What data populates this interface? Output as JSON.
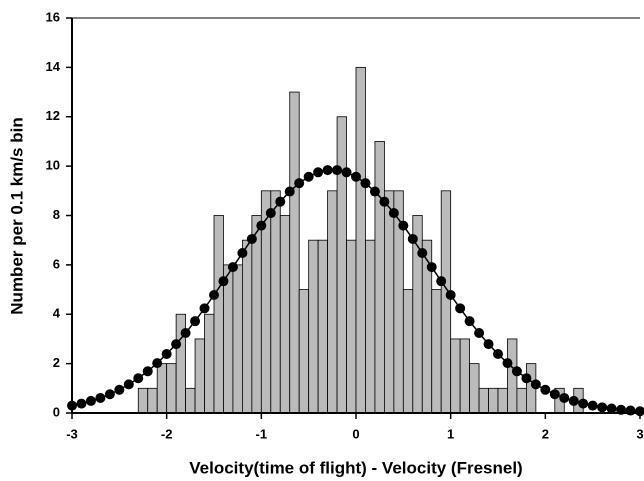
{
  "chart_data": {
    "type": "histogram",
    "xlabel": "Velocity(time of flight) - Velocity (Fresnel)",
    "ylabel": "Number per 0.1 km/s bin",
    "bins": [
      -2.3,
      -2.2,
      -2.1,
      -2.0,
      -1.9,
      -1.8,
      -1.7,
      -1.6,
      -1.5,
      -1.4,
      -1.3,
      -1.2,
      -1.1,
      -1.0,
      -0.9,
      -0.8,
      -0.7,
      -0.6,
      -0.5,
      -0.4,
      -0.3,
      -0.2,
      -0.1,
      0.0,
      0.1,
      0.2,
      0.3,
      0.4,
      0.5,
      0.6,
      0.7,
      0.8,
      0.9,
      1.0,
      1.1,
      1.2,
      1.3,
      1.4,
      1.5,
      1.6,
      1.7,
      1.8,
      1.9,
      2.0,
      2.1,
      2.2,
      2.3,
      2.4
    ],
    "values": [
      1,
      1,
      2,
      2,
      4,
      1,
      3,
      4,
      8,
      6,
      6,
      7,
      8,
      9,
      9,
      8,
      13,
      5,
      7,
      7,
      9,
      12,
      7,
      14,
      7,
      11,
      9,
      9,
      5,
      8,
      7,
      5,
      9,
      3,
      3,
      2,
      1,
      1,
      1,
      3,
      1,
      2,
      0,
      0,
      1,
      0,
      1
    ],
    "color": "#bbbbbb",
    "fit": {
      "type": "line",
      "color": "#000000",
      "marker": "circle",
      "x": [
        -3.0,
        -2.9,
        -2.8,
        -2.7,
        -2.6,
        -2.5,
        -2.4,
        -2.3,
        -2.2,
        -2.1,
        -2.0,
        -1.9,
        -1.8,
        -1.7,
        -1.6,
        -1.5,
        -1.4,
        -1.3,
        -1.2,
        -1.1,
        -1.0,
        -0.9,
        -0.8,
        -0.7,
        -0.6,
        -0.5,
        -0.4,
        -0.3,
        -0.2,
        -0.1,
        0.0,
        0.1,
        0.2,
        0.3,
        0.4,
        0.5,
        0.6,
        0.7,
        0.8,
        0.9,
        1.0,
        1.1,
        1.2,
        1.3,
        1.4,
        1.5,
        1.6,
        1.7,
        1.8,
        1.9,
        2.0,
        2.1,
        2.2,
        2.3,
        2.4,
        2.5,
        2.6,
        2.7,
        2.8,
        2.9,
        3.0
      ],
      "values": [
        0.3,
        0.38,
        0.49,
        0.61,
        0.76,
        0.94,
        1.16,
        1.41,
        1.69,
        2.02,
        2.39,
        2.79,
        3.24,
        3.72,
        4.24,
        4.78,
        5.34,
        5.91,
        6.48,
        7.05,
        7.59,
        8.1,
        8.56,
        8.97,
        9.31,
        9.57,
        9.75,
        9.84,
        9.84,
        9.75,
        9.57,
        9.31,
        8.97,
        8.56,
        8.1,
        7.59,
        7.05,
        6.48,
        5.91,
        5.34,
        4.78,
        4.24,
        3.72,
        3.24,
        2.79,
        2.39,
        2.02,
        1.69,
        1.41,
        1.16,
        0.94,
        0.76,
        0.61,
        0.49,
        0.38,
        0.3,
        0.23,
        0.18,
        0.13,
        0.1,
        0.07
      ]
    },
    "xlim": [
      -3,
      3
    ],
    "xticks": [
      -3,
      -2,
      -1,
      0,
      1,
      2,
      3
    ],
    "ylim": [
      0,
      16
    ],
    "yticks": [
      0,
      2,
      4,
      6,
      8,
      10,
      12,
      14,
      16
    ]
  }
}
